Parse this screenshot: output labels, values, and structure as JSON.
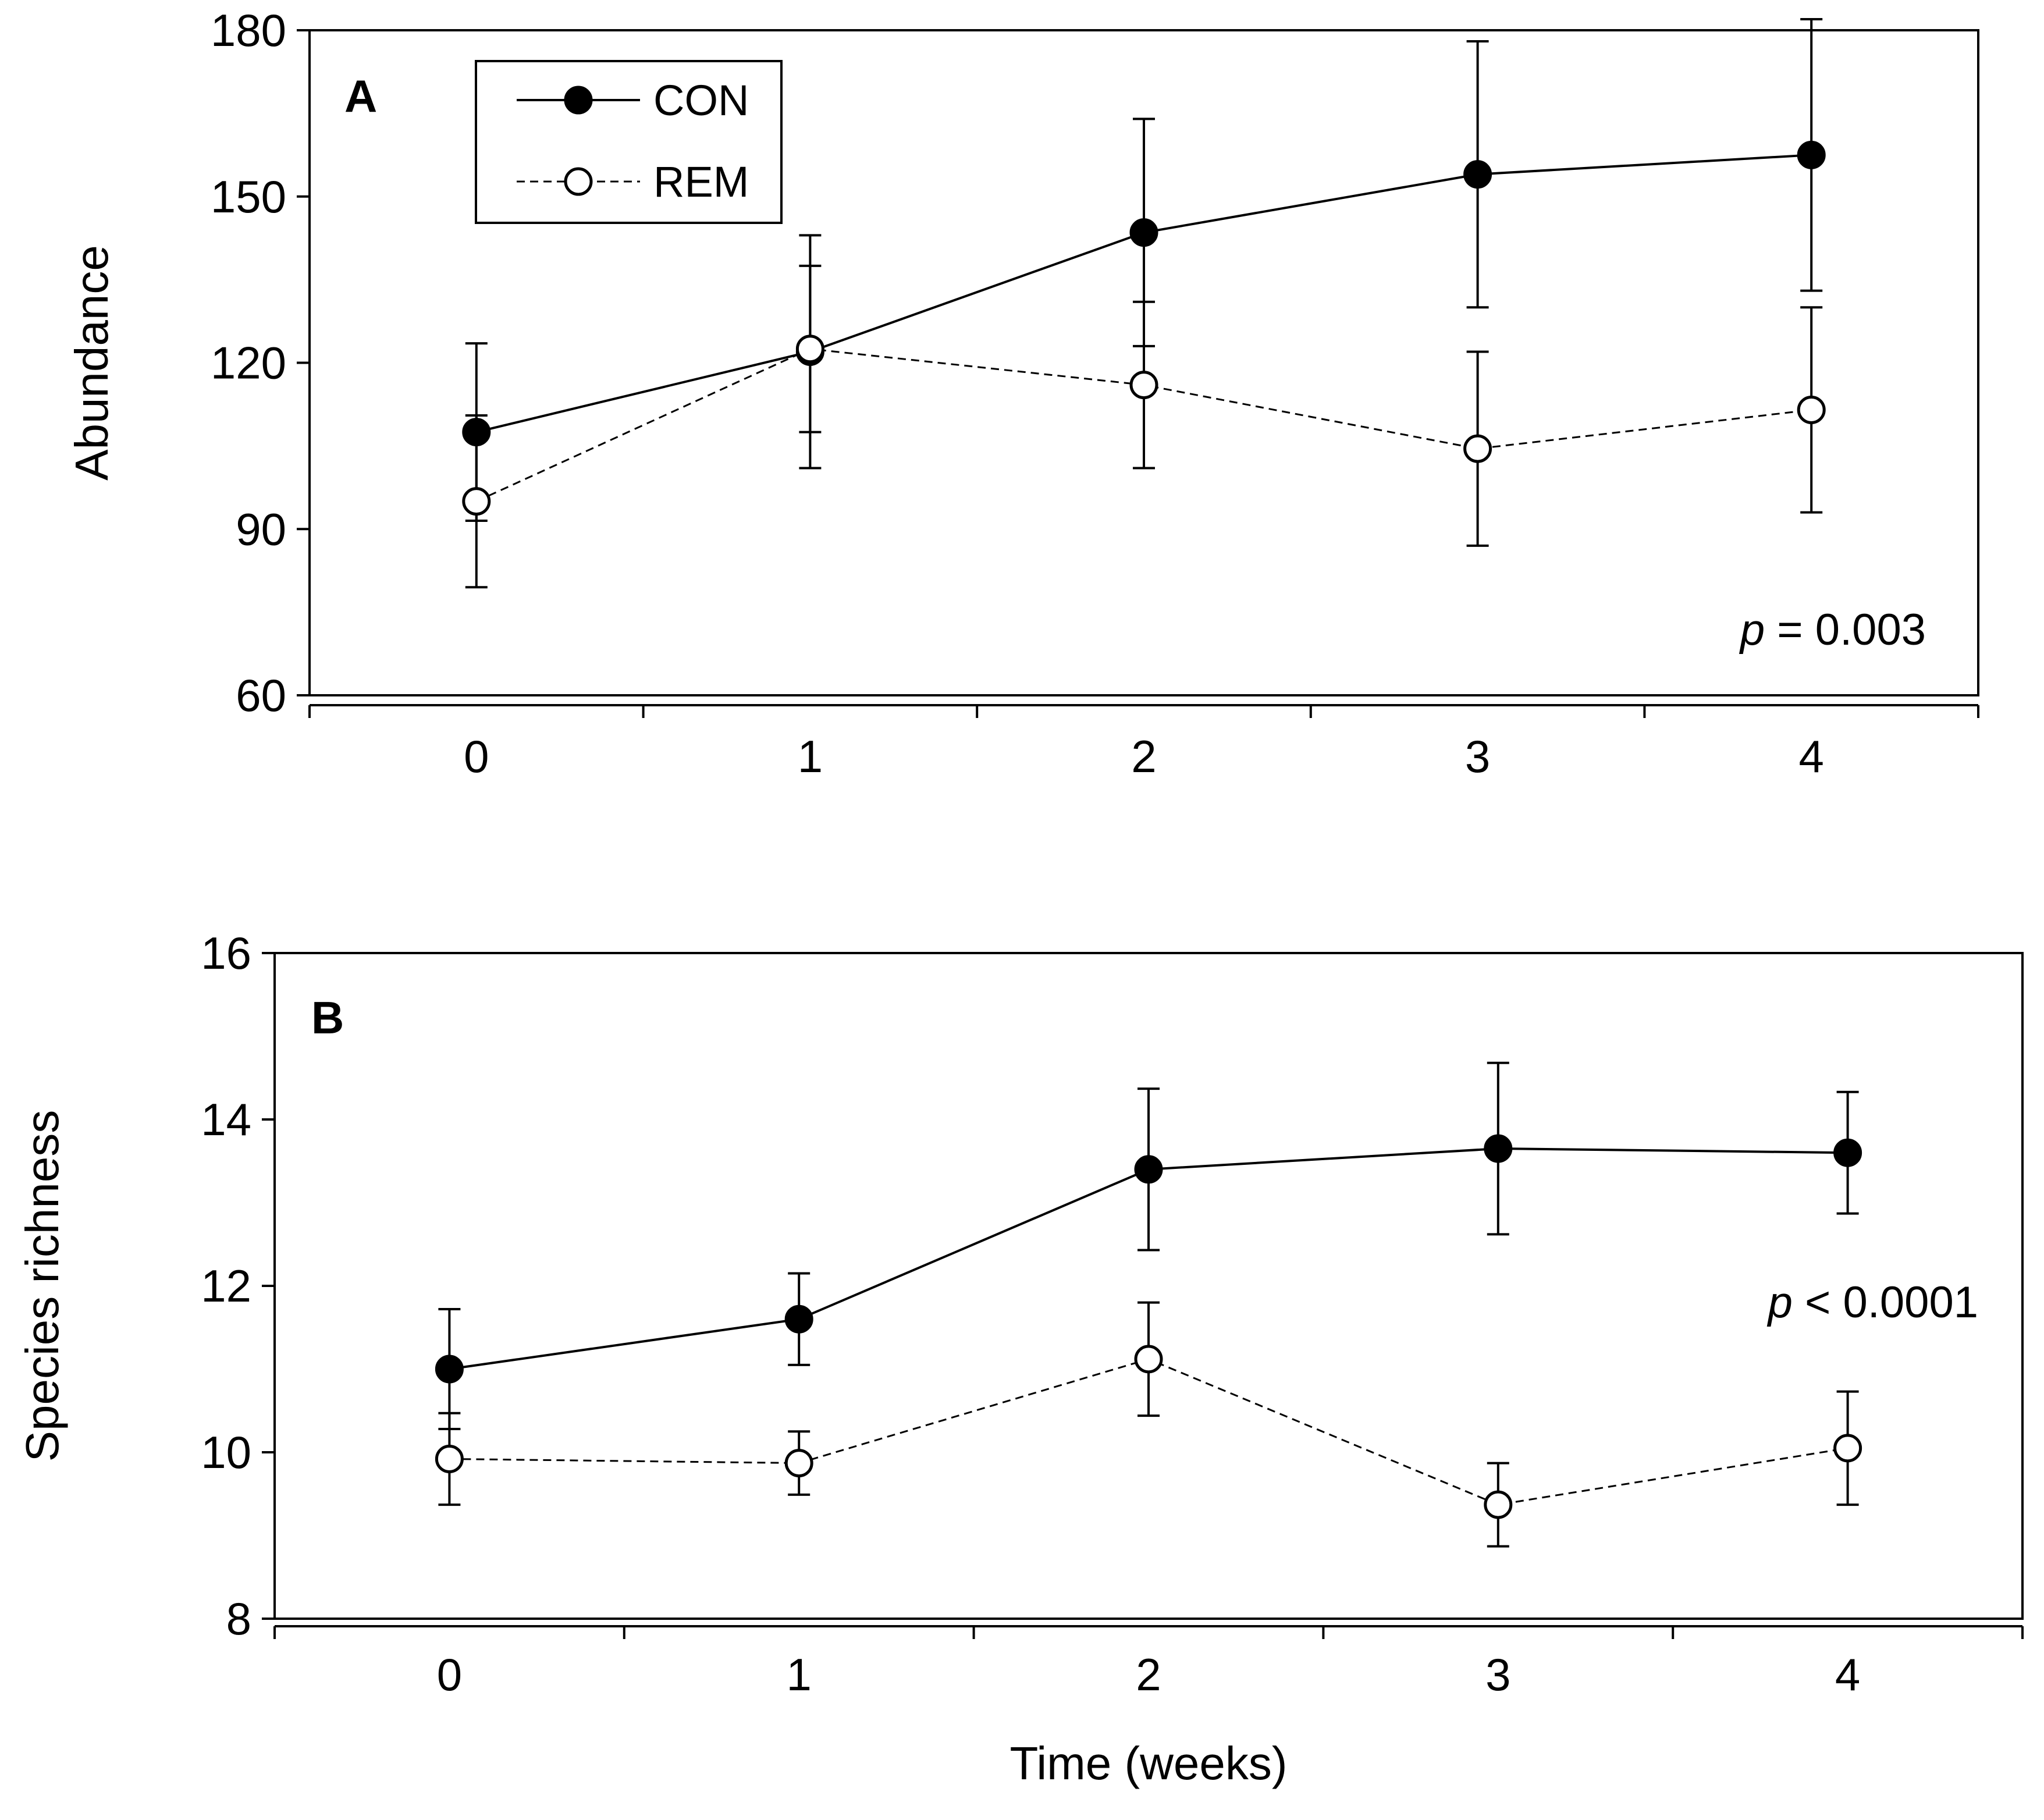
{
  "chart_data": [
    {
      "type": "line",
      "panel": "A",
      "xlabel": "",
      "ylabel": "Abundance",
      "x": [
        0,
        1,
        2,
        3,
        4
      ],
      "xticks": [
        "0",
        "1",
        "2",
        "3",
        "4"
      ],
      "xlim": [
        -0.5,
        4.5
      ],
      "ylim": [
        60,
        180
      ],
      "yticks": [
        60,
        90,
        120,
        150,
        180
      ],
      "annotation": {
        "italic": "p",
        "text": " = 0.003"
      },
      "series": [
        {
          "name": "CON",
          "marker": "filled",
          "line": "solid",
          "values": [
            107.5,
            122,
            143.5,
            154,
            157.5
          ],
          "error": [
            16,
            21,
            20.5,
            24,
            24.5
          ]
        },
        {
          "name": "REM",
          "marker": "open",
          "line": "dashed",
          "values": [
            95,
            122.5,
            116,
            104.5,
            111.5
          ],
          "error": [
            15.5,
            15,
            15,
            17.5,
            18.5
          ]
        }
      ]
    },
    {
      "type": "line",
      "panel": "B",
      "xlabel": "Time (weeks)",
      "ylabel": "Species richness",
      "x": [
        0,
        1,
        2,
        3,
        4
      ],
      "xticks": [
        "0",
        "1",
        "2",
        "3",
        "4"
      ],
      "xlim": [
        -0.5,
        4.5
      ],
      "ylim": [
        8,
        16
      ],
      "yticks": [
        8,
        10,
        12,
        14,
        16
      ],
      "annotation": {
        "italic": "p",
        "text": " < 0.0001"
      },
      "series": [
        {
          "name": "CON",
          "marker": "filled",
          "line": "solid",
          "values": [
            11,
            11.6,
            13.4,
            13.65,
            13.6
          ],
          "error": [
            0.72,
            0.55,
            0.97,
            1.03,
            0.73
          ]
        },
        {
          "name": "REM",
          "marker": "open",
          "line": "dashed",
          "values": [
            9.92,
            9.87,
            11.12,
            9.37,
            10.05
          ],
          "error": [
            0.55,
            0.38,
            0.68,
            0.5,
            0.68
          ]
        }
      ]
    }
  ],
  "legend": [
    {
      "label": "CON",
      "marker": "filled",
      "line": "solid"
    },
    {
      "label": "REM",
      "marker": "open",
      "line": "dashed"
    }
  ],
  "colors": {
    "line": "#000000",
    "open_fill": "#ffffff"
  }
}
